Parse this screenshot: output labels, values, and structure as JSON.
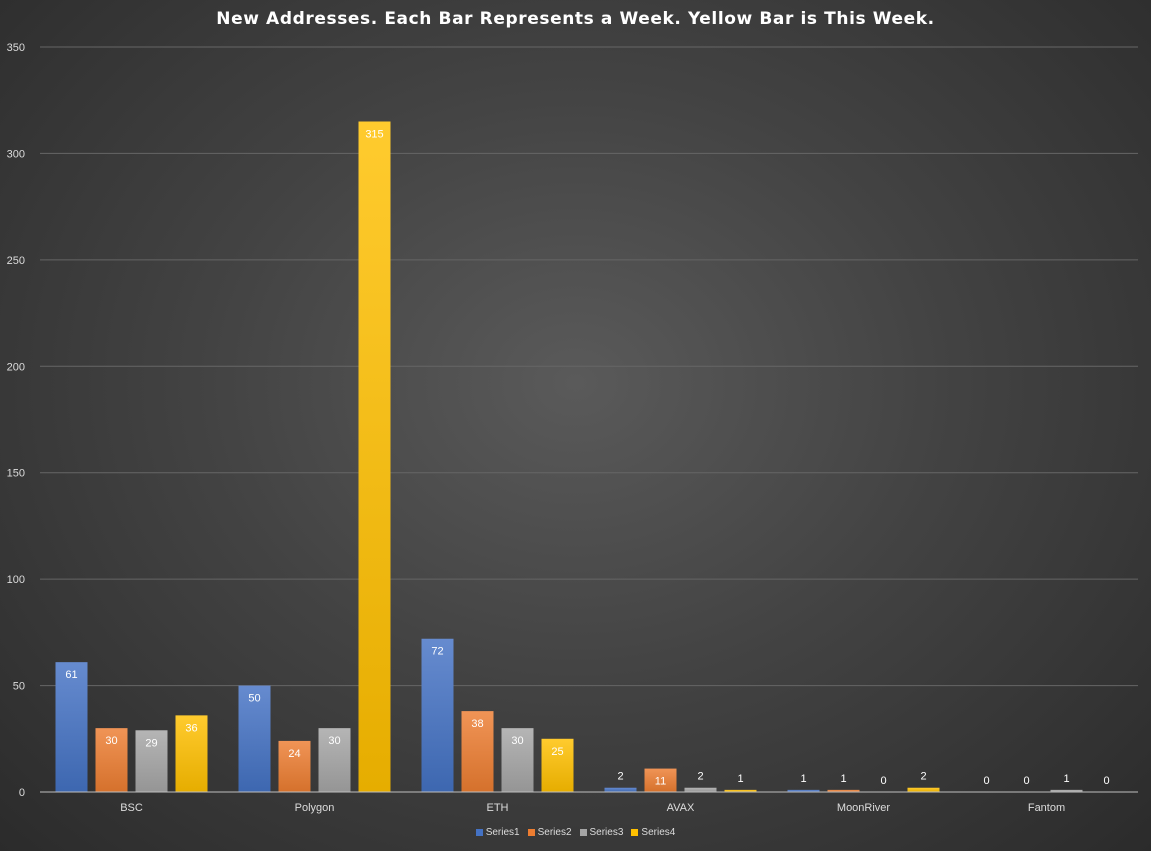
{
  "chart_data": {
    "type": "bar",
    "title": "New Addresses. Each Bar Represents a Week. Yellow Bar is This Week.",
    "categories": [
      "BSC",
      "Polygon",
      "ETH",
      "AVAX",
      "MoonRiver",
      "Fantom"
    ],
    "series": [
      {
        "name": "Series1",
        "color": "#4472c4",
        "values": [
          61,
          50,
          72,
          2,
          1,
          0
        ]
      },
      {
        "name": "Series2",
        "color": "#ed7d31",
        "values": [
          30,
          24,
          38,
          11,
          1,
          0
        ]
      },
      {
        "name": "Series3",
        "color": "#a5a5a5",
        "values": [
          29,
          30,
          30,
          2,
          0,
          1
        ]
      },
      {
        "name": "Series4",
        "color": "#ffc000",
        "values": [
          36,
          315,
          25,
          1,
          2,
          0
        ]
      }
    ],
    "ylim": [
      0,
      350
    ],
    "yticks": [
      "0",
      "50",
      "100",
      "150",
      "200",
      "250",
      "300",
      "350"
    ],
    "grid": true,
    "legend_position": "bottom",
    "data_labels": true,
    "xlabel": "",
    "ylabel": ""
  }
}
